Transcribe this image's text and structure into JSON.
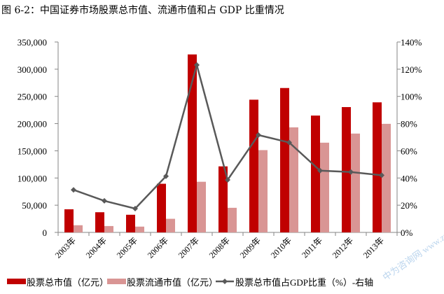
{
  "chart_data": {
    "type": "bar+line",
    "title": "图 6-2：中国证券市场股票总市值、流通市值和占 GDP 比重情况",
    "categories": [
      "2003年",
      "2004年",
      "2005年",
      "2006年",
      "2007年",
      "2008年",
      "2009年",
      "2010年",
      "2011年",
      "2012年",
      "2013年"
    ],
    "series": [
      {
        "name": "股票总市值（亿元）",
        "type": "bar",
        "axis": "left",
        "color": "#c00000",
        "values": [
          42458,
          37056,
          32430,
          89404,
          327141,
          121366,
          243939,
          265423,
          214758,
          230358,
          239077
        ]
      },
      {
        "name": "股票流通市值（亿元）",
        "type": "bar",
        "axis": "left",
        "color": "#d99594",
        "values": [
          13178,
          11689,
          10631,
          25004,
          93064,
          45214,
          151259,
          193110,
          164921,
          181658,
          199580
        ]
      },
      {
        "name": "股票总市值占GDP比重（%）-右轴",
        "type": "line",
        "axis": "right",
        "color": "#595959",
        "values": [
          31.3,
          23.2,
          17.5,
          41.3,
          123.1,
          38.6,
          71.6,
          66.1,
          45.4,
          44.4,
          42.0
        ]
      }
    ],
    "ylim_left": [
      0,
      350000
    ],
    "yticks_left": [
      "0",
      "50,000",
      "100,000",
      "150,000",
      "200,000",
      "250,000",
      "300,000",
      "350,000"
    ],
    "ylim_right": [
      0,
      140
    ],
    "yticks_right": [
      "0%",
      "20%",
      "40%",
      "60%",
      "80%",
      "100%",
      "120%",
      "140%"
    ],
    "legend_position": "bottom",
    "watermark": "中为咨询网 www.zwzyzx.com"
  }
}
